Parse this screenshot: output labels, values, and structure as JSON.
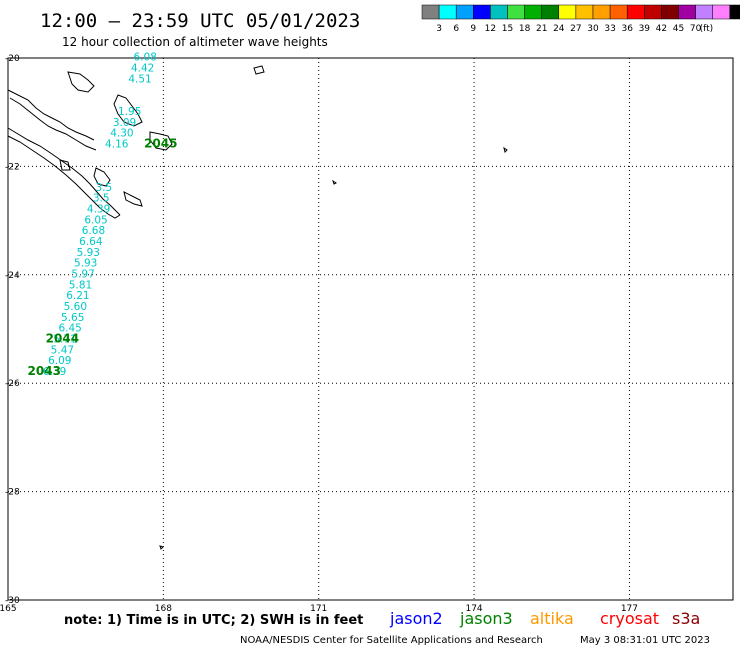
{
  "header": {
    "title": "12:00 – 23:59 UTC 05/01/2023",
    "subtitle": "12 hour collection of altimeter wave heights"
  },
  "legend": {
    "colors": [
      "#808080",
      "#00ffff",
      "#00a0ff",
      "#0000ff",
      "#00c0c0",
      "#40e040",
      "#00b000",
      "#008000",
      "#ffff00",
      "#ffc000",
      "#ffa000",
      "#ff6000",
      "#ff0000",
      "#c00000",
      "#800000",
      "#a000a0",
      "#c080ff",
      "#ff80ff",
      "#000000"
    ],
    "labels": [
      "3",
      "6",
      "9",
      "12",
      "15",
      "18",
      "21",
      "24",
      "27",
      "30",
      "33",
      "36",
      "39",
      "42",
      "45",
      "70",
      "(ft)"
    ]
  },
  "axes": {
    "lon_ticks": [
      "165",
      "168",
      "171",
      "174",
      "177"
    ],
    "lat_ticks": [
      "-20",
      "-22",
      "-24",
      "-26",
      "-28",
      "-30"
    ]
  },
  "track_points": [
    {
      "lon": 165.9,
      "lat": -25.85,
      "swh": "6.39"
    },
    {
      "lon": 166.0,
      "lat": -25.65,
      "swh": "6.09"
    },
    {
      "lon": 166.05,
      "lat": -25.45,
      "swh": "5.47"
    },
    {
      "lon": 166.1,
      "lat": -25.25,
      "swh": "5.71"
    },
    {
      "lon": 166.2,
      "lat": -25.05,
      "swh": "6.45"
    },
    {
      "lon": 166.25,
      "lat": -24.85,
      "swh": "5.65"
    },
    {
      "lon": 166.3,
      "lat": -24.65,
      "swh": "5.60"
    },
    {
      "lon": 166.35,
      "lat": -24.45,
      "swh": "6.21"
    },
    {
      "lon": 166.4,
      "lat": -24.25,
      "swh": "5.81"
    },
    {
      "lon": 166.45,
      "lat": -24.05,
      "swh": "5.97"
    },
    {
      "lon": 166.5,
      "lat": -23.85,
      "swh": "5.93"
    },
    {
      "lon": 166.55,
      "lat": -23.65,
      "swh": "5.93"
    },
    {
      "lon": 166.6,
      "lat": -23.45,
      "swh": "6.64"
    },
    {
      "lon": 166.65,
      "lat": -23.25,
      "swh": "6.68"
    },
    {
      "lon": 166.7,
      "lat": -23.05,
      "swh": "6.05"
    },
    {
      "lon": 166.75,
      "lat": -22.85,
      "swh": "4.39"
    },
    {
      "lon": 166.8,
      "lat": -22.65,
      "swh": "3.5"
    },
    {
      "lon": 166.85,
      "lat": -22.45,
      "swh": "3.5"
    },
    {
      "lon": 167.1,
      "lat": -21.65,
      "swh": "4.16"
    },
    {
      "lon": 167.2,
      "lat": -21.45,
      "swh": "4.30"
    },
    {
      "lon": 167.25,
      "lat": -21.25,
      "swh": "3.09"
    },
    {
      "lon": 167.35,
      "lat": -21.05,
      "swh": "1.95"
    },
    {
      "lon": 167.55,
      "lat": -20.45,
      "swh": "4.51"
    },
    {
      "lon": 167.6,
      "lat": -20.25,
      "swh": "4.42"
    },
    {
      "lon": 167.65,
      "lat": -20.05,
      "swh": "6.08"
    }
  ],
  "pass_labels": [
    {
      "lon": 167.95,
      "lat": -21.65,
      "text": "2045"
    },
    {
      "lon": 166.05,
      "lat": -25.25,
      "text": "2044"
    },
    {
      "lon": 165.7,
      "lat": -25.85,
      "text": "2043"
    }
  ],
  "footer": {
    "note": "note: 1) Time is in UTC; 2) SWH is in feet",
    "satellites": [
      {
        "name": "jason2",
        "color": "#0000ff"
      },
      {
        "name": "jason3",
        "color": "#008000"
      },
      {
        "name": "altika",
        "color": "#ff9900"
      },
      {
        "name": "cryosat",
        "color": "#ff0000"
      },
      {
        "name": "s3a",
        "color": "#8b0000"
      }
    ],
    "credit": "NOAA/NESDIS Center for Satellite Applications and Research",
    "timestamp": "May  3 08:31:01 UTC 2023"
  }
}
